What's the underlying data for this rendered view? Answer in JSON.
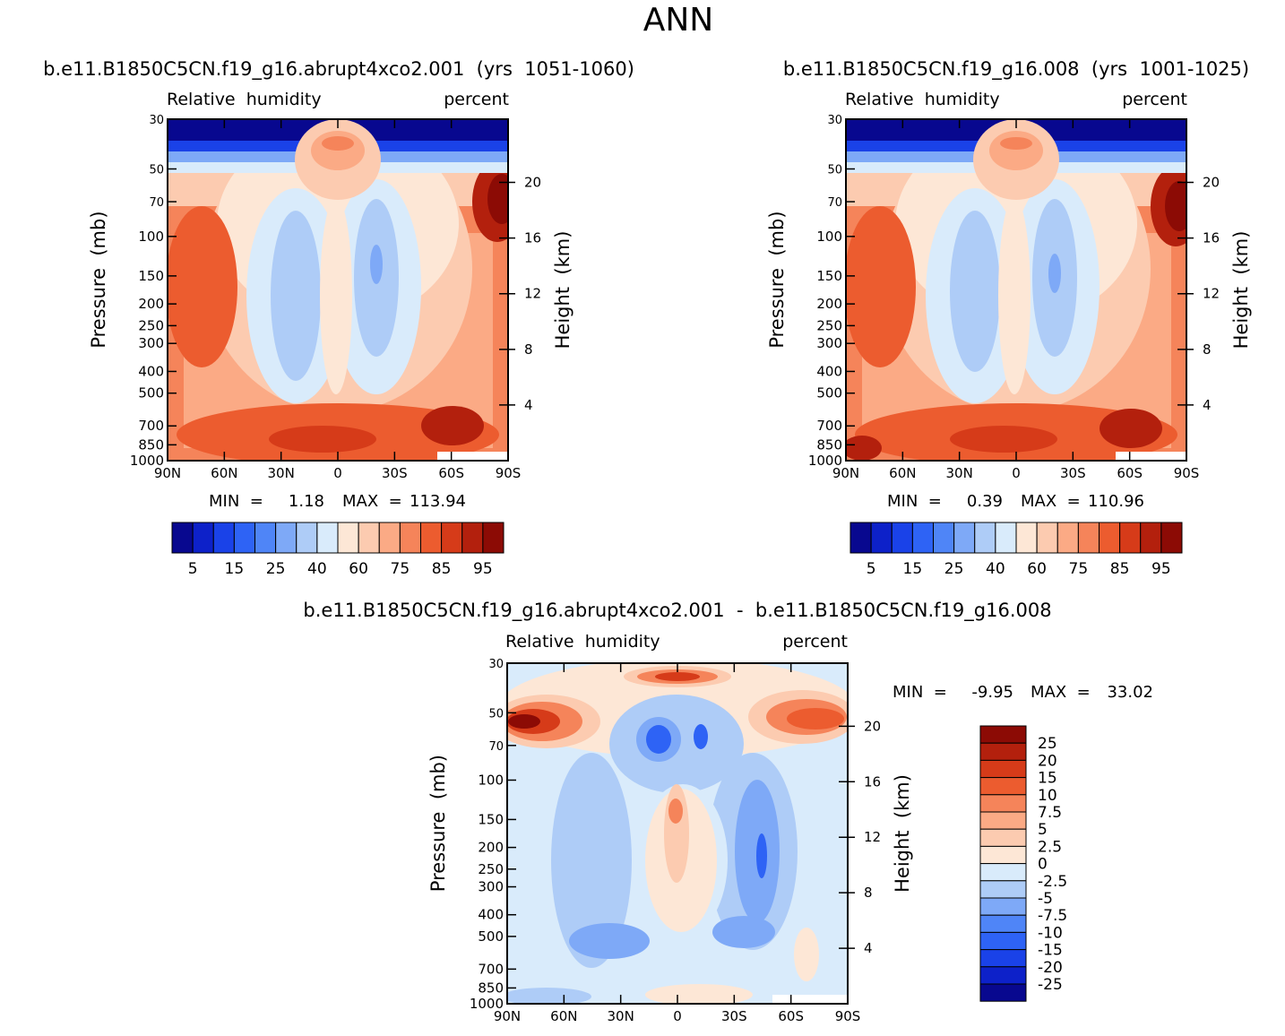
{
  "page_title": "ANN",
  "chart_data": [
    {
      "id": "panel1",
      "type": "heatmap",
      "title": "b.e11.B1850C5CN.f19_g16.abrupt4xco2.001  (yrs  1051-1060)",
      "variable": "Relative  humidity",
      "units": "percent",
      "xlabel": "",
      "ylabel": "Pressure  (mb)",
      "ylabel_right": "Height  (km)",
      "x_ticks": [
        "90N",
        "60N",
        "30N",
        "0",
        "30S",
        "60S",
        "90S"
      ],
      "y_ticks": [
        "30",
        "50",
        "70",
        "100",
        "150",
        "200",
        "250",
        "300",
        "400",
        "500",
        "700",
        "850",
        "1000"
      ],
      "y_ticks_right": [
        "20",
        "16",
        "12",
        "8",
        "4"
      ],
      "min_label": "MIN  =",
      "min_value": "1.18",
      "max_label": "MAX  =",
      "max_value": "113.94",
      "legend_labels": [
        "5",
        "15",
        "25",
        "40",
        "60",
        "75",
        "85",
        "95"
      ]
    },
    {
      "id": "panel2",
      "type": "heatmap",
      "title": "b.e11.B1850C5CN.f19_g16.008  (yrs  1001-1025)",
      "variable": "Relative  humidity",
      "units": "percent",
      "xlabel": "",
      "ylabel": "Pressure  (mb)",
      "ylabel_right": "Height  (km)",
      "x_ticks": [
        "90N",
        "60N",
        "30N",
        "0",
        "30S",
        "60S",
        "90S"
      ],
      "y_ticks": [
        "30",
        "50",
        "70",
        "100",
        "150",
        "200",
        "250",
        "300",
        "400",
        "500",
        "700",
        "850",
        "1000"
      ],
      "y_ticks_right": [
        "20",
        "16",
        "12",
        "8",
        "4"
      ],
      "min_label": "MIN  =",
      "min_value": "0.39",
      "max_label": "MAX  =",
      "max_value": "110.96",
      "legend_labels": [
        "5",
        "15",
        "25",
        "40",
        "60",
        "75",
        "85",
        "95"
      ]
    },
    {
      "id": "panel3",
      "type": "heatmap",
      "title": "b.e11.B1850C5CN.f19_g16.abrupt4xco2.001  -  b.e11.B1850C5CN.f19_g16.008",
      "variable": "Relative  humidity",
      "units": "percent",
      "xlabel": "",
      "ylabel": "Pressure  (mb)",
      "ylabel_right": "Height  (km)",
      "x_ticks": [
        "90N",
        "60N",
        "30N",
        "0",
        "30S",
        "60S",
        "90S"
      ],
      "y_ticks": [
        "30",
        "50",
        "70",
        "100",
        "150",
        "200",
        "250",
        "300",
        "400",
        "500",
        "700",
        "850",
        "1000"
      ],
      "y_ticks_right": [
        "20",
        "16",
        "12",
        "8",
        "4"
      ],
      "min_label": "MIN  =",
      "min_value": "-9.95",
      "max_label": "MAX  =",
      "max_value": "33.02",
      "legend_labels": [
        "25",
        "20",
        "15",
        "10",
        "7.5",
        "5",
        "2.5",
        "0",
        "-2.5",
        "-5",
        "-7.5",
        "-10",
        "-15",
        "-20",
        "-25"
      ]
    }
  ],
  "colors": {
    "seq": [
      "#08088f",
      "#0d21c9",
      "#1a42e8",
      "#2e63f5",
      "#4f85f7",
      "#7ea9f7",
      "#aeccf7",
      "#d9ebfb",
      "#fde7d6",
      "#fccbb0",
      "#fbaa85",
      "#f5845a",
      "#ec5c2f",
      "#d63b19",
      "#b3200d",
      "#8c0b05"
    ],
    "diff": [
      "#8c0b05",
      "#b3200d",
      "#d63b19",
      "#ec5c2f",
      "#f5845a",
      "#fbaa85",
      "#fccbb0",
      "#fde7d6",
      "#d9ebfb",
      "#aeccf7",
      "#7ea9f7",
      "#4f85f7",
      "#2e63f5",
      "#1a42e8",
      "#0d21c9",
      "#08088f"
    ]
  }
}
